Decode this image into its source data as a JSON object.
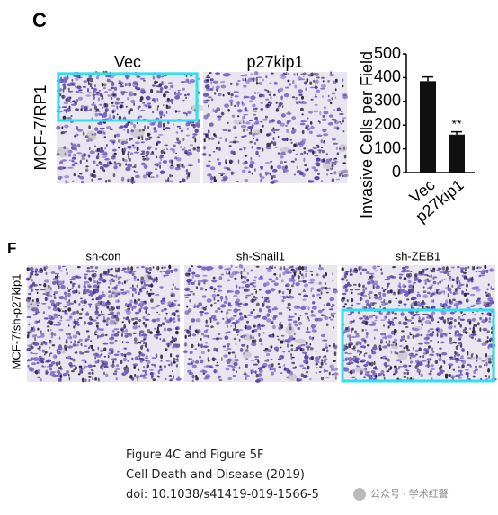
{
  "panel_c": {
    "label": "C",
    "row_label": "MCF-7/RP1",
    "columns": [
      "Vec",
      "p27kip1"
    ]
  },
  "chart_data": {
    "type": "bar",
    "y_label": "Invasive Cells per Field",
    "categories": [
      "Vec",
      "p27kip1"
    ],
    "values": [
      385,
      160
    ],
    "errors": [
      18,
      12
    ],
    "color": "#111111",
    "ylim": [
      0,
      500
    ],
    "yticks": [
      0,
      100,
      200,
      300,
      400,
      500
    ],
    "annotations": [
      {
        "text": "**",
        "category": "p27kip1"
      }
    ]
  },
  "panel_f": {
    "label": "F",
    "row_label": "MCF-7/sh-p27kip1",
    "columns": [
      "sh-con",
      "sh-Snail1",
      "sh-ZEB1"
    ]
  },
  "caption": {
    "lines": [
      "Figure 4C and Figure 5F",
      "Cell Death and Disease (2019)",
      "doi: 10.1038/s41419-019-1566-5"
    ]
  },
  "watermark": "公众号 · 学术红警"
}
